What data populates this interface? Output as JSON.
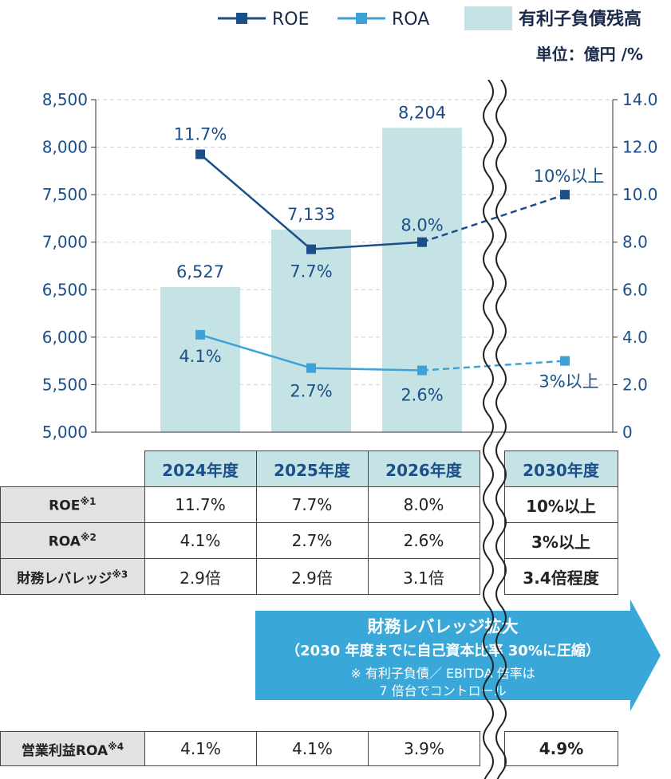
{
  "legend": {
    "roe": "ROE",
    "roa": "ROA",
    "debt": "有利子負債残高"
  },
  "unit_label": "単位：億円 /%",
  "colors": {
    "roe": "#1b4f8a",
    "roa": "#3fa2d6",
    "bar": "#c5e3e4",
    "arrow": "#3aa7d9",
    "text": "#1b4f8a"
  },
  "chart_data": {
    "type": "bar",
    "categories": [
      "2024年度",
      "2025年度",
      "2026年度",
      "2030年度"
    ],
    "y_left": {
      "ylim": [
        5000,
        8500
      ],
      "ticks": [
        "5,000",
        "5,500",
        "6,000",
        "6,500",
        "7,000",
        "7,500",
        "8,000",
        "8,500"
      ]
    },
    "y_right": {
      "ylim": [
        0,
        14
      ],
      "ticks": [
        "0",
        "2.0",
        "4.0",
        "6.0",
        "8.0",
        "10.0",
        "12.0",
        "14.0"
      ]
    },
    "grid": true,
    "legend_position": "top-right",
    "series": [
      {
        "name": "有利子負債残高",
        "type": "bar",
        "axis": "left",
        "values": [
          6527,
          7133,
          8204,
          null
        ],
        "labels": [
          "6,527",
          "7,133",
          "8,204",
          ""
        ]
      },
      {
        "name": "ROE",
        "type": "line",
        "axis": "right",
        "values": [
          11.7,
          7.7,
          8.0,
          10
        ],
        "labels": [
          "11.7%",
          "7.7%",
          "8.0%",
          "10%以上"
        ],
        "dashed_last_segment": true
      },
      {
        "name": "ROA",
        "type": "line",
        "axis": "right",
        "values": [
          4.1,
          2.7,
          2.6,
          3
        ],
        "labels": [
          "4.1%",
          "2.7%",
          "2.6%",
          "3%以上"
        ],
        "dashed_last_segment": true
      }
    ]
  },
  "table": {
    "columns": [
      "2024年度",
      "2025年度",
      "2026年度",
      "2030年度"
    ],
    "rows": [
      {
        "label": "ROE",
        "note": "※1",
        "values": [
          "11.7%",
          "7.7%",
          "8.0%",
          "10%以上"
        ]
      },
      {
        "label": "ROA",
        "note": "※2",
        "values": [
          "4.1%",
          "2.7%",
          "2.6%",
          "3%以上"
        ]
      },
      {
        "label": "財務レバレッジ",
        "note": "※3",
        "values": [
          "2.9倍",
          "2.9倍",
          "3.1倍",
          "3.4倍程度"
        ]
      }
    ]
  },
  "arrow": {
    "title": "財務レバレッジ拡大",
    "subtitle": "（2030 年度までに自己資本比率 30%に圧縮）",
    "note_line1": "※ 有利子負債／ EBITDA 倍率は",
    "note_line2": "7 倍台でコントロール"
  },
  "op_profit": {
    "label": "営業利益ROA",
    "note": "※4",
    "values": [
      "4.1%",
      "4.1%",
      "3.9%",
      "4.9%"
    ]
  }
}
